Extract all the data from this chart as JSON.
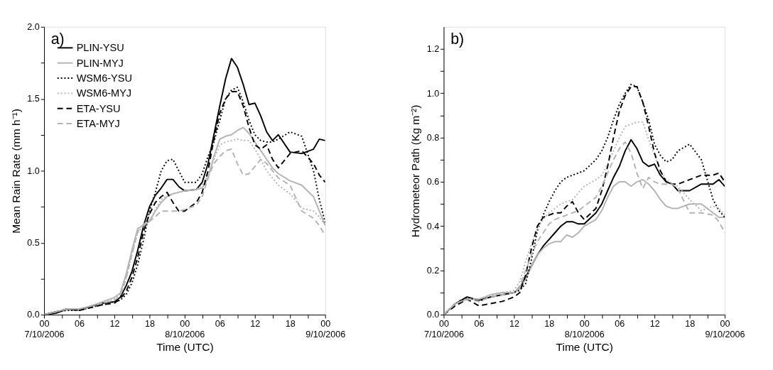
{
  "chart_data": [
    {
      "type": "line",
      "annotations": [
        "a)"
      ],
      "xlabel": "Time (UTC)",
      "ylabel": "Mean Rain Rate (mm h⁻¹)",
      "x": [
        "2006-10-07T00:00",
        "2006-10-07T02:00",
        "2006-10-07T04:00",
        "2006-10-07T06:00",
        "2006-10-07T08:00",
        "2006-10-07T10:00",
        "2006-10-07T12:00",
        "2006-10-07T13:00",
        "2006-10-07T14:00",
        "2006-10-07T15:00",
        "2006-10-07T16:00",
        "2006-10-07T17:00",
        "2006-10-07T18:00",
        "2006-10-07T19:00",
        "2006-10-07T20:00",
        "2006-10-07T21:00",
        "2006-10-07T22:00",
        "2006-10-07T23:00",
        "2006-10-08T00:00",
        "2006-10-08T02:00",
        "2006-10-08T03:00",
        "2006-10-08T04:00",
        "2006-10-08T05:00",
        "2006-10-08T06:00",
        "2006-10-08T07:00",
        "2006-10-08T08:00",
        "2006-10-08T09:00",
        "2006-10-08T10:00",
        "2006-10-08T11:00",
        "2006-10-08T12:00",
        "2006-10-08T13:00",
        "2006-10-08T14:00",
        "2006-10-08T15:00",
        "2006-10-08T16:00",
        "2006-10-08T18:00",
        "2006-10-08T20:00",
        "2006-10-08T22:00",
        "2006-10-08T23:00",
        "2006-10-09T00:00"
      ],
      "xlim": [
        "2006-10-07T00:00",
        "2006-10-09T00:00"
      ],
      "xticks": [
        {
          "value": "2006-10-07T00:00",
          "label": "00\n7/10/2006"
        },
        {
          "value": "2006-10-07T03:00",
          "label": null
        },
        {
          "value": "2006-10-07T06:00",
          "label": "06"
        },
        {
          "value": "2006-10-07T09:00",
          "label": null
        },
        {
          "value": "2006-10-07T12:00",
          "label": "12"
        },
        {
          "value": "2006-10-07T15:00",
          "label": null
        },
        {
          "value": "2006-10-07T18:00",
          "label": "18"
        },
        {
          "value": "2006-10-07T21:00",
          "label": null
        },
        {
          "value": "2006-10-08T00:00",
          "label": "00\n8/10/2006"
        },
        {
          "value": "2006-10-08T03:00",
          "label": null
        },
        {
          "value": "2006-10-08T06:00",
          "label": "06"
        },
        {
          "value": "2006-10-08T09:00",
          "label": null
        },
        {
          "value": "2006-10-08T12:00",
          "label": "12"
        },
        {
          "value": "2006-10-08T15:00",
          "label": null
        },
        {
          "value": "2006-10-08T18:00",
          "label": "18"
        },
        {
          "value": "2006-10-08T21:00",
          "label": null
        },
        {
          "value": "2006-10-09T00:00",
          "label": "00\n9/10/2006"
        }
      ],
      "ylim": [
        0,
        2.0
      ],
      "yticks": [
        {
          "value": 0,
          "label": "0.0"
        },
        {
          "value": 0.25,
          "label": null
        },
        {
          "value": 0.5,
          "label": "0.5"
        },
        {
          "value": 0.75,
          "label": null
        },
        {
          "value": 1.0,
          "label": "1.0"
        },
        {
          "value": 1.25,
          "label": null
        },
        {
          "value": 1.5,
          "label": "1.5"
        },
        {
          "value": 1.75,
          "label": null
        },
        {
          "value": 2.0,
          "label": "2.0"
        }
      ],
      "grid": false,
      "legend": "top left",
      "marker": "none",
      "series": [
        {
          "name": "PLIN-YSU",
          "color": "#000000",
          "line_style": "solid",
          "values": [
            0,
            0.01,
            0.04,
            0.03,
            0.06,
            0.08,
            0.09,
            0.12,
            0.2,
            0.3,
            0.45,
            0.62,
            0.75,
            0.83,
            0.88,
            0.94,
            0.94,
            0.89,
            0.86,
            0.87,
            0.92,
            1.05,
            1.25,
            1.45,
            1.64,
            1.78,
            1.72,
            1.6,
            1.46,
            1.47,
            1.38,
            1.27,
            1.21,
            1.25,
            1.13,
            1.12,
            1.15,
            1.22,
            1.21
          ]
        },
        {
          "name": "PLIN-MYJ",
          "color": "#b4b4b4",
          "line_style": "solid",
          "values": [
            0,
            0.02,
            0.04,
            0.04,
            0.06,
            0.09,
            0.12,
            0.15,
            0.28,
            0.45,
            0.6,
            0.62,
            0.65,
            0.72,
            0.78,
            0.82,
            0.84,
            0.85,
            0.86,
            0.87,
            0.88,
            0.95,
            1.1,
            1.22,
            1.24,
            1.25,
            1.28,
            1.3,
            1.26,
            1.2,
            1.14,
            1.08,
            1.02,
            0.98,
            0.93,
            0.9,
            0.82,
            0.72,
            0.62
          ]
        },
        {
          "name": "WSM6-YSU",
          "color": "#000000",
          "line_style": "dotted",
          "values": [
            0,
            0.02,
            0.03,
            0.03,
            0.05,
            0.07,
            0.09,
            0.1,
            0.14,
            0.22,
            0.35,
            0.52,
            0.72,
            0.85,
            1.0,
            1.07,
            1.08,
            1.0,
            0.92,
            0.92,
            0.98,
            1.1,
            1.2,
            1.35,
            1.5,
            1.56,
            1.58,
            1.48,
            1.35,
            1.25,
            1.21,
            1.2,
            1.2,
            1.22,
            1.27,
            1.24,
            1.0,
            0.8,
            0.64
          ]
        },
        {
          "name": "WSM6-MYJ",
          "color": "#b4b4b4",
          "line_style": "dotted",
          "values": [
            0,
            0.02,
            0.04,
            0.03,
            0.06,
            0.08,
            0.11,
            0.14,
            0.25,
            0.42,
            0.57,
            0.62,
            0.65,
            0.73,
            0.8,
            0.83,
            0.84,
            0.85,
            0.86,
            0.87,
            0.9,
            0.97,
            1.08,
            1.18,
            1.2,
            1.21,
            1.22,
            1.21,
            1.21,
            1.15,
            1.08,
            1.0,
            0.95,
            0.9,
            0.84,
            0.74,
            0.72,
            0.68,
            0.62
          ]
        },
        {
          "name": "ETA-YSU",
          "color": "#000000",
          "line_style": "dashed",
          "values": [
            0,
            0.02,
            0.04,
            0.03,
            0.05,
            0.07,
            0.08,
            0.11,
            0.16,
            0.26,
            0.4,
            0.58,
            0.7,
            0.78,
            0.82,
            0.85,
            0.78,
            0.72,
            0.72,
            0.78,
            0.85,
            1.0,
            1.22,
            1.4,
            1.5,
            1.55,
            1.55,
            1.45,
            1.3,
            1.18,
            1.15,
            1.18,
            1.08,
            1.02,
            1.12,
            1.14,
            1.05,
            0.97,
            0.92
          ]
        },
        {
          "name": "ETA-MYJ",
          "color": "#b4b4b4",
          "line_style": "dashed",
          "values": [
            0,
            0.02,
            0.04,
            0.04,
            0.06,
            0.08,
            0.1,
            0.13,
            0.25,
            0.42,
            0.58,
            0.63,
            0.65,
            0.68,
            0.72,
            0.72,
            0.72,
            0.72,
            0.73,
            0.76,
            0.82,
            0.95,
            1.05,
            1.1,
            1.14,
            1.15,
            1.05,
            0.97,
            0.98,
            1.03,
            1.08,
            1.05,
            1.0,
            0.95,
            0.9,
            0.72,
            0.67,
            0.62,
            0.55
          ]
        }
      ]
    },
    {
      "type": "line",
      "annotations": [
        "b)"
      ],
      "xlabel": "Time (UTC)",
      "ylabel": "Hydrometeor Path (Kg m⁻²)",
      "x": [
        "2006-10-07T00:00",
        "2006-10-07T02:00",
        "2006-10-07T04:00",
        "2006-10-07T06:00",
        "2006-10-07T08:00",
        "2006-10-07T10:00",
        "2006-10-07T12:00",
        "2006-10-07T13:00",
        "2006-10-07T14:00",
        "2006-10-07T15:00",
        "2006-10-07T16:00",
        "2006-10-07T17:00",
        "2006-10-07T18:00",
        "2006-10-07T19:00",
        "2006-10-07T20:00",
        "2006-10-07T21:00",
        "2006-10-07T22:00",
        "2006-10-07T23:00",
        "2006-10-08T00:00",
        "2006-10-08T02:00",
        "2006-10-08T03:00",
        "2006-10-08T04:00",
        "2006-10-08T05:00",
        "2006-10-08T06:00",
        "2006-10-08T07:00",
        "2006-10-08T08:00",
        "2006-10-08T09:00",
        "2006-10-08T10:00",
        "2006-10-08T11:00",
        "2006-10-08T12:00",
        "2006-10-08T13:00",
        "2006-10-08T14:00",
        "2006-10-08T15:00",
        "2006-10-08T16:00",
        "2006-10-08T18:00",
        "2006-10-08T20:00",
        "2006-10-08T22:00",
        "2006-10-08T23:00",
        "2006-10-09T00:00"
      ],
      "xlim": [
        "2006-10-07T00:00",
        "2006-10-09T00:00"
      ],
      "xticks": [
        {
          "value": "2006-10-07T00:00",
          "label": "00\n7/10/2006"
        },
        {
          "value": "2006-10-07T03:00",
          "label": null
        },
        {
          "value": "2006-10-07T06:00",
          "label": "06"
        },
        {
          "value": "2006-10-07T09:00",
          "label": null
        },
        {
          "value": "2006-10-07T12:00",
          "label": "12"
        },
        {
          "value": "2006-10-07T15:00",
          "label": null
        },
        {
          "value": "2006-10-07T18:00",
          "label": "18"
        },
        {
          "value": "2006-10-07T21:00",
          "label": null
        },
        {
          "value": "2006-10-08T00:00",
          "label": "00\n8/10/2006"
        },
        {
          "value": "2006-10-08T03:00",
          "label": null
        },
        {
          "value": "2006-10-08T06:00",
          "label": "06"
        },
        {
          "value": "2006-10-08T09:00",
          "label": null
        },
        {
          "value": "2006-10-08T12:00",
          "label": "12"
        },
        {
          "value": "2006-10-08T15:00",
          "label": null
        },
        {
          "value": "2006-10-08T18:00",
          "label": "18"
        },
        {
          "value": "2006-10-08T21:00",
          "label": null
        },
        {
          "value": "2006-10-09T00:00",
          "label": "00\n9/10/2006"
        }
      ],
      "ylim": [
        0,
        1.3
      ],
      "yticks": [
        {
          "value": 0,
          "label": "0.0"
        },
        {
          "value": 0.1,
          "label": null
        },
        {
          "value": 0.2,
          "label": "0.2"
        },
        {
          "value": 0.3,
          "label": null
        },
        {
          "value": 0.4,
          "label": "0.4"
        },
        {
          "value": 0.5,
          "label": null
        },
        {
          "value": 0.6,
          "label": "0.6"
        },
        {
          "value": 0.7,
          "label": null
        },
        {
          "value": 0.8,
          "label": "0.8"
        },
        {
          "value": 0.9,
          "label": null
        },
        {
          "value": 1.0,
          "label": "1.0"
        },
        {
          "value": 1.1,
          "label": null
        },
        {
          "value": 1.2,
          "label": "1.2"
        }
      ],
      "grid": false,
      "legend": false,
      "marker": "none",
      "series": [
        {
          "color": "#000000",
          "line_style": "solid",
          "values": [
            0,
            0.05,
            0.08,
            0.065,
            0.08,
            0.09,
            0.1,
            0.12,
            0.17,
            0.22,
            0.27,
            0.31,
            0.34,
            0.37,
            0.4,
            0.42,
            0.42,
            0.41,
            0.41,
            0.46,
            0.5,
            0.56,
            0.62,
            0.67,
            0.74,
            0.79,
            0.75,
            0.69,
            0.67,
            0.68,
            0.63,
            0.6,
            0.59,
            0.56,
            0.56,
            0.59,
            0.59,
            0.61,
            0.58
          ]
        },
        {
          "color": "#b4b4b4",
          "line_style": "solid",
          "values": [
            0,
            0.05,
            0.07,
            0.07,
            0.09,
            0.1,
            0.1,
            0.12,
            0.16,
            0.22,
            0.27,
            0.3,
            0.32,
            0.33,
            0.33,
            0.36,
            0.35,
            0.37,
            0.4,
            0.43,
            0.47,
            0.53,
            0.58,
            0.6,
            0.6,
            0.58,
            0.6,
            0.61,
            0.59,
            0.56,
            0.52,
            0.49,
            0.48,
            0.48,
            0.5,
            0.5,
            0.46,
            0.44,
            0.44
          ]
        },
        {
          "color": "#000000",
          "line_style": "dotted",
          "values": [
            0,
            0.05,
            0.08,
            0.06,
            0.08,
            0.09,
            0.1,
            0.11,
            0.14,
            0.25,
            0.38,
            0.45,
            0.51,
            0.56,
            0.6,
            0.62,
            0.63,
            0.64,
            0.65,
            0.7,
            0.74,
            0.8,
            0.88,
            0.95,
            1.0,
            1.04,
            1.03,
            0.96,
            0.88,
            0.77,
            0.72,
            0.69,
            0.7,
            0.74,
            0.77,
            0.7,
            0.52,
            0.47,
            0.44
          ]
        },
        {
          "color": "#b4b4b4",
          "line_style": "dotted",
          "values": [
            0,
            0.05,
            0.07,
            0.07,
            0.09,
            0.1,
            0.11,
            0.15,
            0.24,
            0.32,
            0.39,
            0.43,
            0.46,
            0.48,
            0.5,
            0.51,
            0.52,
            0.55,
            0.58,
            0.61,
            0.63,
            0.68,
            0.74,
            0.8,
            0.85,
            0.86,
            0.87,
            0.87,
            0.79,
            0.72,
            0.65,
            0.61,
            0.59,
            0.58,
            0.52,
            0.47,
            0.49,
            0.48,
            0.45
          ]
        },
        {
          "color": "#000000",
          "line_style": "dashed",
          "values": [
            0,
            0.04,
            0.07,
            0.04,
            0.05,
            0.06,
            0.08,
            0.1,
            0.18,
            0.3,
            0.4,
            0.44,
            0.45,
            0.46,
            0.46,
            0.49,
            0.51,
            0.46,
            0.43,
            0.48,
            0.56,
            0.67,
            0.8,
            0.92,
            0.99,
            1.03,
            1.03,
            0.96,
            0.85,
            0.73,
            0.65,
            0.6,
            0.59,
            0.59,
            0.61,
            0.63,
            0.63,
            0.64,
            0.6
          ]
        },
        {
          "color": "#b4b4b4",
          "line_style": "dashed",
          "values": [
            0,
            0.05,
            0.07,
            0.06,
            0.08,
            0.09,
            0.1,
            0.13,
            0.2,
            0.27,
            0.33,
            0.37,
            0.41,
            0.43,
            0.44,
            0.45,
            0.46,
            0.47,
            0.49,
            0.53,
            0.58,
            0.64,
            0.7,
            0.75,
            0.78,
            0.73,
            0.64,
            0.57,
            0.62,
            0.6,
            0.59,
            0.59,
            0.59,
            0.57,
            0.46,
            0.46,
            0.45,
            0.42,
            0.37
          ]
        }
      ]
    }
  ]
}
